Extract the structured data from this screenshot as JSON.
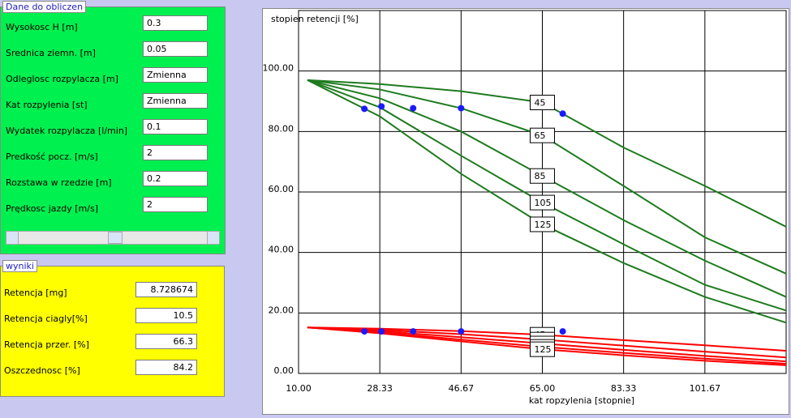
{
  "input_panel": {
    "title": "Dane do obliczen",
    "fields": [
      {
        "label": "Wysokosc H [m]",
        "value": "0.3"
      },
      {
        "label": "Srednica ziemn. [m]",
        "value": "0.05"
      },
      {
        "label": "Odleglosc rozpylacza [m]",
        "value": "Zmienna"
      },
      {
        "label": "Kat rozpylenia [st]",
        "value": "Zmienna"
      },
      {
        "label": "Wydatek rozpylacza  [l/min]",
        "value": "0.1"
      },
      {
        "label": "Predkość pocz. [m/s]",
        "value": "2"
      },
      {
        "label": "Rozstawa w rzedzie [m]",
        "value": "0.2"
      },
      {
        "label": "Prędkosc jazdy [m/s]",
        "value": "2"
      }
    ]
  },
  "results_panel": {
    "title": "wyniki",
    "fields": [
      {
        "label": "Retencja [mg]",
        "value": "8.728674"
      },
      {
        "label": "Retencja ciagly[%]",
        "value": "10.5"
      },
      {
        "label": "Retencja przer.  [%]",
        "value": "66.3"
      },
      {
        "label": "Oszczednosc [%]",
        "value": "84.2"
      }
    ]
  },
  "chart_data": {
    "type": "line",
    "y_axis_title": "stopien retencji [%]",
    "x_axis_title": "kat ropzylenia [stopnie]",
    "xlim": [
      10,
      120
    ],
    "ylim": [
      0,
      120
    ],
    "grid": true,
    "xticks": [
      {
        "value": 10,
        "label": "10.00"
      },
      {
        "value": 28.33,
        "label": "28.33"
      },
      {
        "value": 46.67,
        "label": "46.67"
      },
      {
        "value": 65,
        "label": "65.00"
      },
      {
        "value": 83.33,
        "label": "83.33"
      },
      {
        "value": 101.67,
        "label": "101.67"
      }
    ],
    "yticks": [
      {
        "value": 0,
        "label": "0.00"
      },
      {
        "value": 20,
        "label": "20.00"
      },
      {
        "value": 40,
        "label": "40.00"
      },
      {
        "value": 60,
        "label": "60.00"
      },
      {
        "value": 80,
        "label": "80.00"
      },
      {
        "value": 100,
        "label": "100.00"
      }
    ],
    "x": [
      12,
      28.33,
      46.67,
      65,
      83.33,
      101.67,
      120
    ],
    "series": [
      {
        "name": "45",
        "color": "#1e7b1e",
        "values": [
          97,
          95.7,
          93.3,
          89.6,
          74.7,
          62,
          48.5
        ]
      },
      {
        "name": "65",
        "color": "#1e7b1e",
        "values": [
          97,
          93.9,
          87.7,
          78.7,
          62,
          45,
          33
        ]
      },
      {
        "name": "85",
        "color": "#1e7b1e",
        "values": [
          97,
          91,
          80,
          65.3,
          50.7,
          37.3,
          25.3
        ]
      },
      {
        "name": "105",
        "color": "#1e7b1e",
        "values": [
          97,
          88,
          72,
          56.5,
          42.7,
          29.3,
          20.8
        ]
      },
      {
        "name": "125",
        "color": "#1e7b1e",
        "values": [
          97,
          85,
          66,
          49.3,
          36.5,
          25.3,
          16.8
        ]
      },
      {
        "name": "45",
        "color": "#ff0000",
        "values": [
          15.2,
          14.8,
          14,
          12.8,
          11,
          9.3,
          7.5
        ]
      },
      {
        "name": "65",
        "color": "#ff0000",
        "values": [
          15.2,
          14.4,
          13,
          11.2,
          9.2,
          7.2,
          5.3
        ]
      },
      {
        "name": "85",
        "color": "#ff0000",
        "values": [
          15.2,
          14,
          12,
          9.9,
          7.8,
          5.8,
          4
        ]
      },
      {
        "name": "105",
        "color": "#ff0000",
        "values": [
          15.2,
          13.6,
          11.2,
          8.8,
          6.8,
          4.9,
          3.2
        ]
      },
      {
        "name": "125",
        "color": "#ff0000",
        "values": [
          15.2,
          13.3,
          10.6,
          8,
          6,
          4.2,
          2.7
        ]
      }
    ],
    "markers": [
      {
        "color": "#1a1aff",
        "x": [
          24.85,
          28.7,
          35.85,
          46.67,
          69.6
        ],
        "values": [
          87.5,
          88.3,
          87.7,
          87.7,
          85.9
        ]
      },
      {
        "color": "#1a1aff",
        "x": [
          24.85,
          28.7,
          35.85,
          46.67,
          69.6
        ],
        "values": [
          13.9,
          13.9,
          13.9,
          13.9,
          13.9
        ]
      }
    ]
  }
}
